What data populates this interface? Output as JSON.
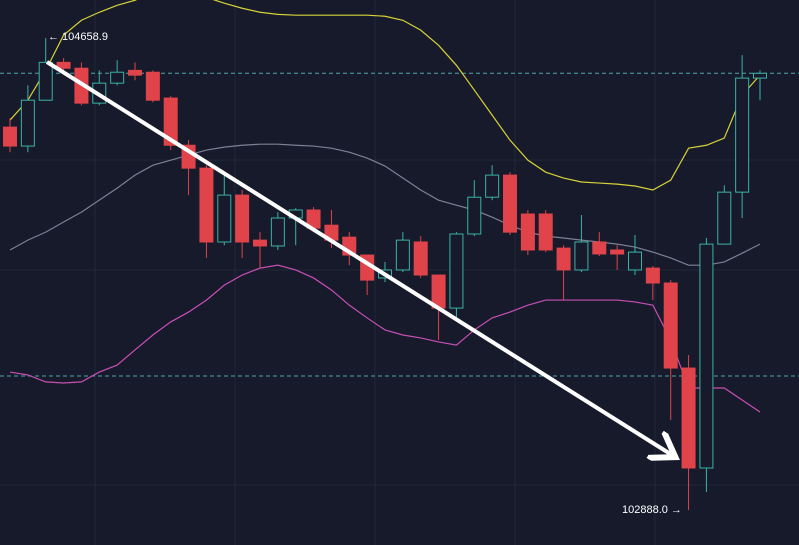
{
  "chart_data": {
    "type": "candlestick",
    "ylim": [
      102757,
      104802
    ],
    "up_color": "#3bb3a3",
    "down_color": "#e0444a",
    "open": [
      104325,
      104254,
      104426,
      104568,
      104546,
      104415,
      104490,
      104538,
      104531,
      104434,
      104257,
      104171,
      103894,
      104070,
      103901,
      103879,
      103984,
      104014,
      103957,
      103912,
      103845,
      103759,
      103789,
      103894,
      103770,
      103646,
      103924,
      104062,
      104145,
      103999,
      103999,
      103871,
      103789,
      103894,
      103864,
      103789,
      103796,
      103740,
      103421,
      103046,
      103886,
      104081,
      104509
    ],
    "high": [
      104359,
      104482,
      104658.9,
      104584,
      104568,
      104538,
      104576,
      104568,
      104538,
      104441,
      104276,
      104182,
      104145,
      104089,
      103931,
      104006,
      104021,
      104025,
      104014,
      103931,
      103845,
      103819,
      103931,
      103916,
      103770,
      103931,
      104126,
      104182,
      104156,
      104014,
      104014,
      103882,
      103995,
      103931,
      103882,
      103920,
      103804,
      103751,
      103470,
      103909,
      104107,
      104595,
      104538
    ],
    "low": [
      104231,
      104231,
      104426,
      104531,
      104407,
      104407,
      104482,
      104501,
      104418,
      104239,
      104070,
      103834,
      103882,
      103834,
      103796,
      103864,
      103882,
      103931,
      103871,
      103807,
      103695,
      103744,
      103781,
      103759,
      103526,
      103609,
      103916,
      104051,
      103920,
      103845,
      103856,
      103676,
      103781,
      103841,
      103789,
      103770,
      103676,
      103226,
      102888.0,
      102956,
      103886,
      103984,
      104426
    ],
    "close": [
      104254,
      104426,
      104568,
      104546,
      104415,
      104490,
      104531,
      104520,
      104426,
      104257,
      104171,
      103894,
      104070,
      103894,
      103879,
      103984,
      104014,
      103946,
      103901,
      103845,
      103751,
      103789,
      103901,
      103770,
      103646,
      103924,
      104062,
      104145,
      103931,
      103864,
      103864,
      103789,
      103894,
      103849,
      103849,
      103856,
      103740,
      103421,
      103046,
      103886,
      104081,
      104509,
      104527
    ],
    "bands": [
      {
        "color": "#d8d238",
        "values": [
          104351,
          104426,
          104538,
          104670,
          104726,
          104756,
          104782,
          104801,
          104831,
          104839,
          104831,
          104812,
          104790,
          104771,
          104756,
          104748,
          104745,
          104745,
          104745,
          104745,
          104745,
          104741,
          104726,
          104689,
          104632,
          104557,
          104464,
          104370,
          104276,
          104201,
          104156,
          104134,
          104119,
          104115,
          104111,
          104104,
          104089,
          104126,
          104246,
          104257,
          104284,
          104445,
          104520
        ]
      },
      {
        "color": "#7c8194",
        "values": [
          103864,
          103901,
          103931,
          103969,
          104006,
          104051,
          104096,
          104145,
          104182,
          104201,
          104220,
          104239,
          104250,
          104257,
          104261,
          104261,
          104257,
          104254,
          104246,
          104231,
          104209,
          104179,
          104134,
          104089,
          104051,
          104032,
          104014,
          103987,
          103957,
          103931,
          103916,
          103909,
          103901,
          103894,
          103886,
          103875,
          103856,
          103834,
          103807,
          103807,
          103819,
          103852,
          103886
        ]
      },
      {
        "color": "#c84fb4",
        "values": [
          103406,
          103395,
          103369,
          103365,
          103369,
          103406,
          103432,
          103489,
          103545,
          103594,
          103631,
          103676,
          103732,
          103770,
          103796,
          103807,
          103789,
          103759,
          103714,
          103657,
          103609,
          103564,
          103545,
          103534,
          103519,
          103507,
          103564,
          103609,
          103631,
          103657,
          103676,
          103676,
          103676,
          103676,
          103676,
          103669,
          103657,
          103526,
          103346,
          103346,
          103346,
          103301,
          103256
        ]
      }
    ],
    "reference_lines": {
      "color": "#4fa7a9",
      "values": [
        104527,
        103391
      ]
    },
    "annotations": [
      "← 104658.9",
      "102888.0 →"
    ]
  }
}
